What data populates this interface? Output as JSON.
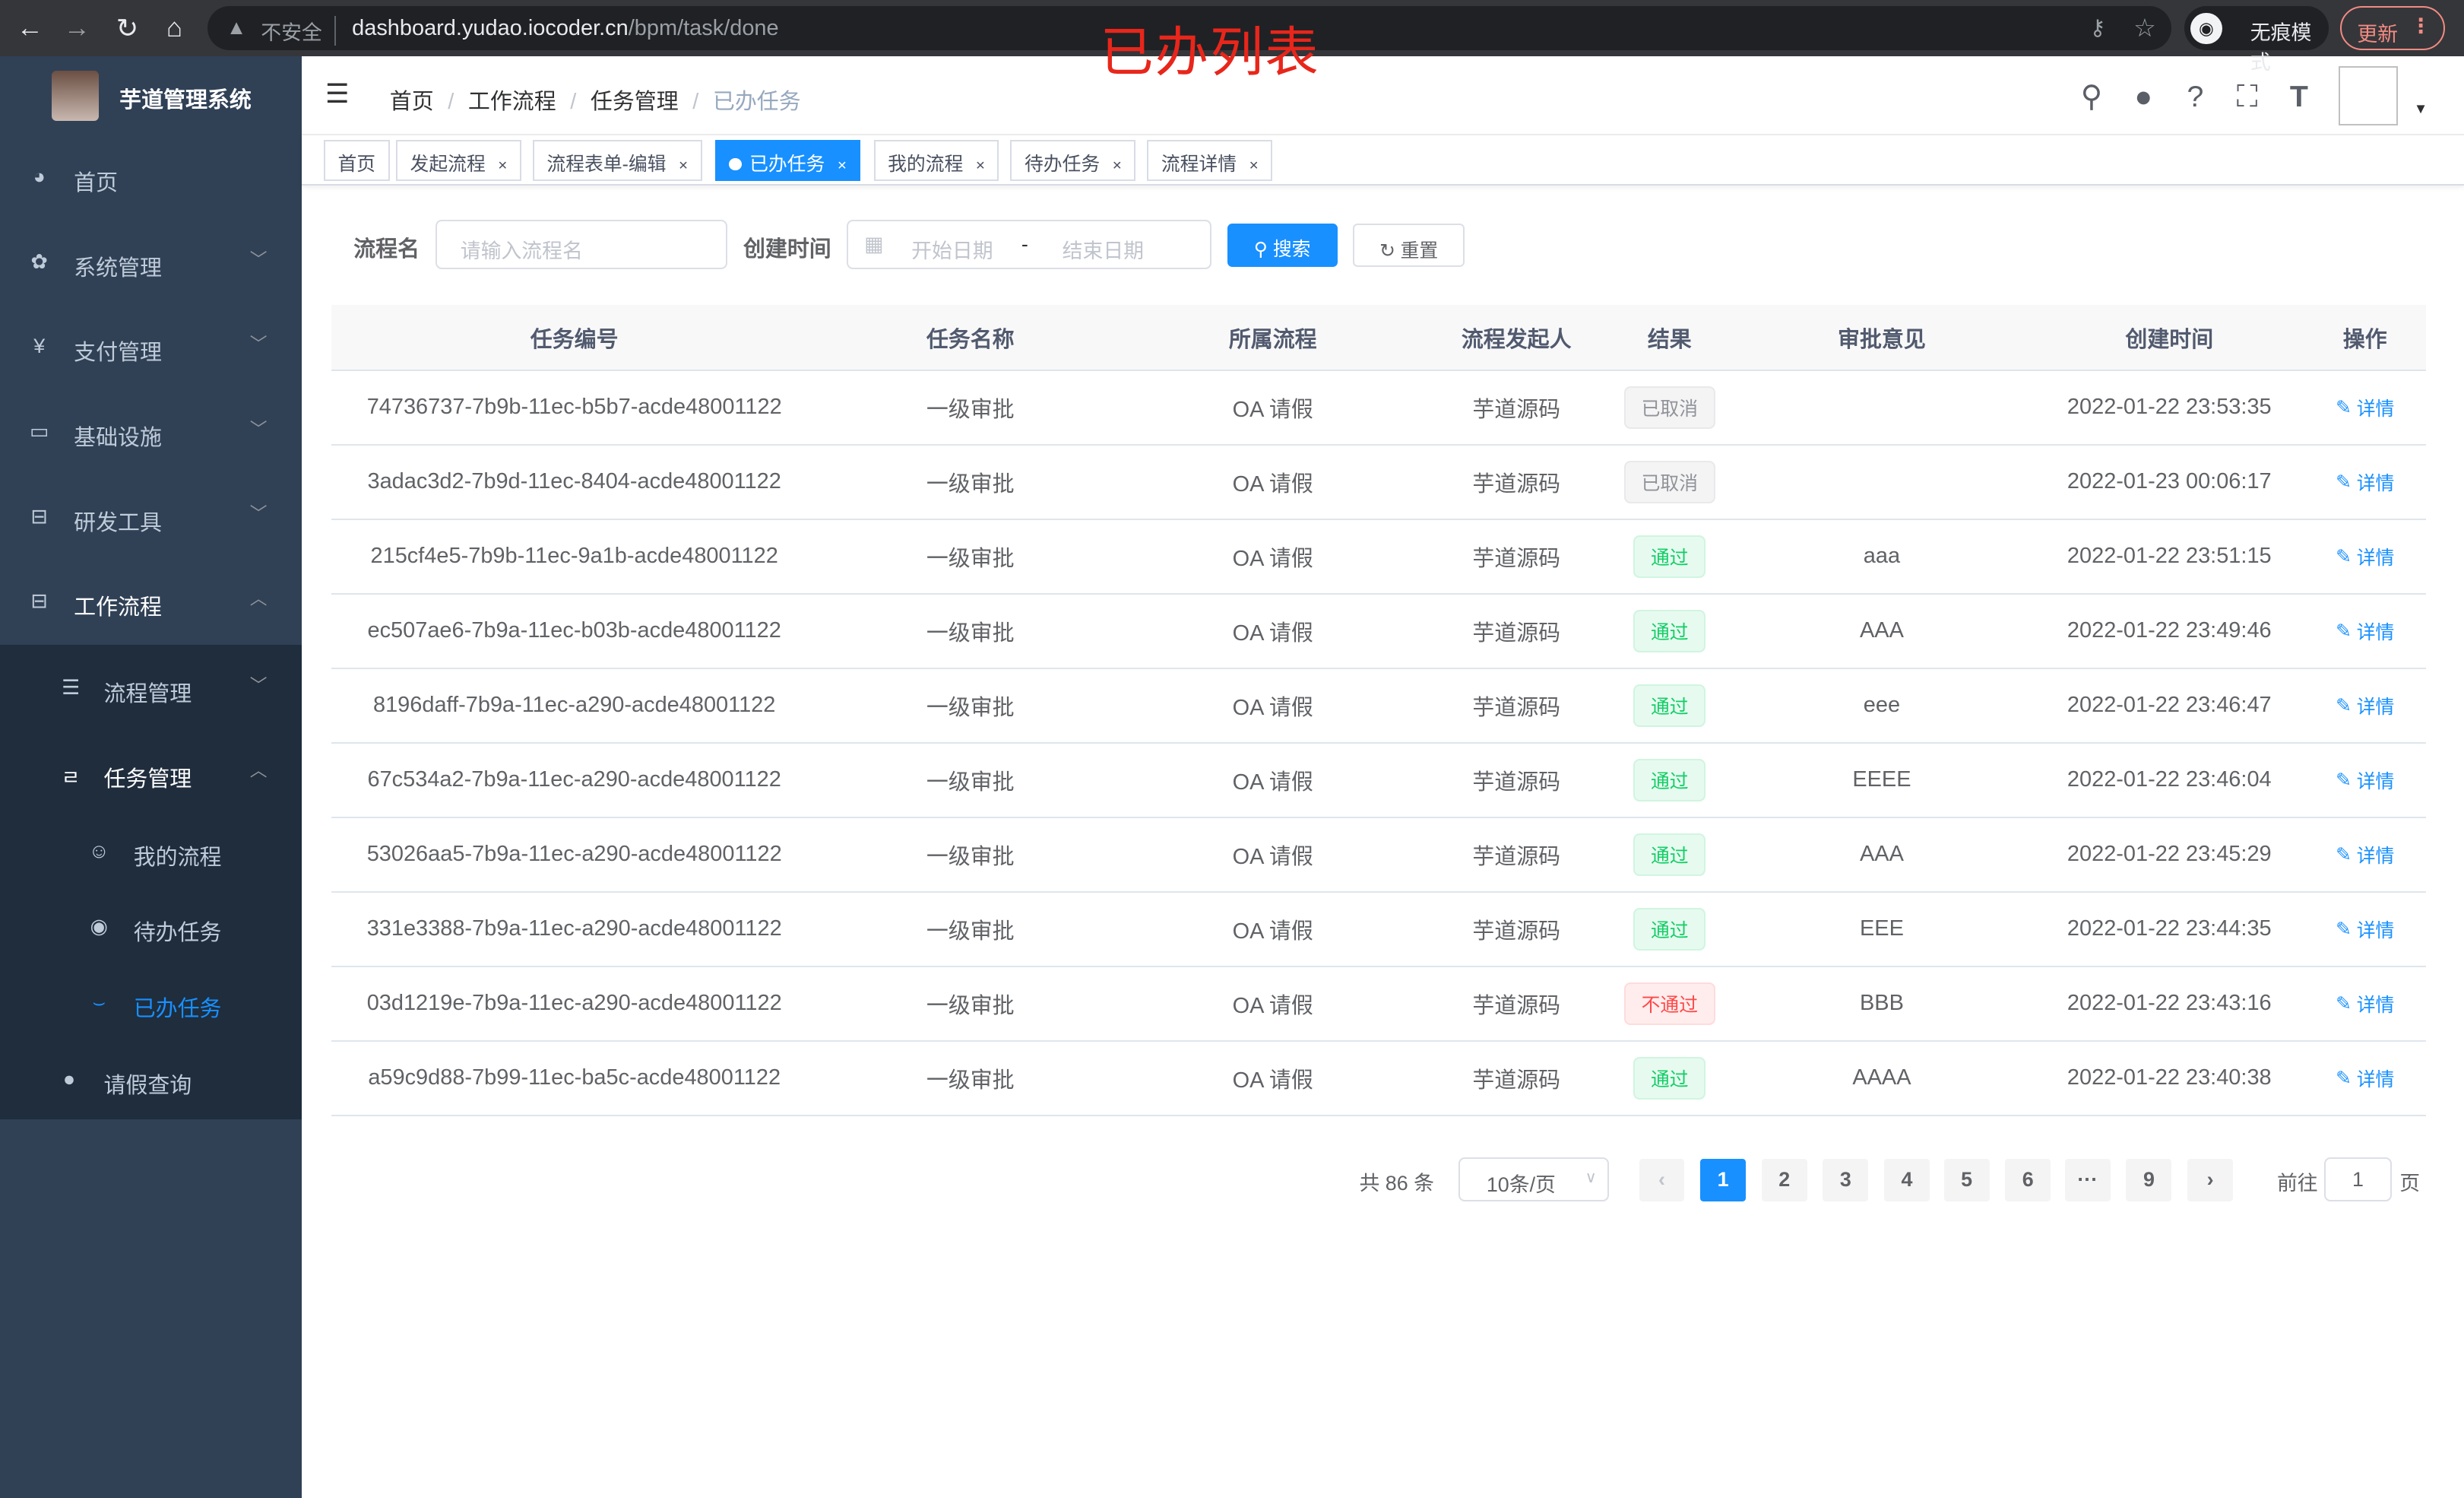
{
  "browser": {
    "insecure": "不安全",
    "url_host": "dashboard.yudao.iocoder.cn",
    "url_path": "/bpm/task/done",
    "incognito": "无痕模式",
    "update": "更新"
  },
  "overlay_title": "已办列表",
  "app": {
    "title": "芋道管理系统"
  },
  "sidebar": {
    "items": [
      {
        "label": "首页",
        "icon": "dashboard-icon"
      },
      {
        "label": "系统管理",
        "icon": "gear-icon"
      },
      {
        "label": "支付管理",
        "icon": "yen-icon"
      },
      {
        "label": "基础设施",
        "icon": "monitor-icon"
      },
      {
        "label": "研发工具",
        "icon": "toolbox-icon"
      },
      {
        "label": "工作流程",
        "icon": "toolbox-icon"
      }
    ],
    "workflow": [
      {
        "label": "流程管理",
        "icon": "list-icon"
      },
      {
        "label": "任务管理",
        "icon": "task-icon"
      },
      {
        "label": "我的流程",
        "icon": "face-icon"
      },
      {
        "label": "待办任务",
        "icon": "eye-icon"
      },
      {
        "label": "已办任务",
        "icon": "eye-closed-icon"
      },
      {
        "label": "请假查询",
        "icon": "user-icon"
      }
    ]
  },
  "breadcrumb": [
    "首页",
    "工作流程",
    "任务管理",
    "已办任务"
  ],
  "tags": [
    {
      "label": "首页"
    },
    {
      "label": "发起流程"
    },
    {
      "label": "流程表单-编辑"
    },
    {
      "label": "已办任务",
      "active": true
    },
    {
      "label": "我的流程"
    },
    {
      "label": "待办任务"
    },
    {
      "label": "流程详情"
    }
  ],
  "search": {
    "name_label": "流程名",
    "name_placeholder": "请输入流程名",
    "time_label": "创建时间",
    "start_placeholder": "开始日期",
    "range_sep": "-",
    "end_placeholder": "结束日期",
    "search_btn": "搜索",
    "reset_btn": "重置"
  },
  "table": {
    "headers": [
      "任务编号",
      "任务名称",
      "所属流程",
      "流程发起人",
      "结果",
      "审批意见",
      "创建时间",
      "操作"
    ],
    "action": "详情",
    "rows": [
      [
        "74736737-7b9b-11ec-b5b7-acde48001122",
        "一级审批",
        "OA 请假",
        "芋道源码",
        "已取消",
        "",
        "2022-01-22 23:53:35"
      ],
      [
        "3adac3d2-7b9d-11ec-8404-acde48001122",
        "一级审批",
        "OA 请假",
        "芋道源码",
        "已取消",
        "",
        "2022-01-23 00:06:17"
      ],
      [
        "215cf4e5-7b9b-11ec-9a1b-acde48001122",
        "一级审批",
        "OA 请假",
        "芋道源码",
        "通过",
        "aaa",
        "2022-01-22 23:51:15"
      ],
      [
        "ec507ae6-7b9a-11ec-b03b-acde48001122",
        "一级审批",
        "OA 请假",
        "芋道源码",
        "通过",
        "AAA",
        "2022-01-22 23:49:46"
      ],
      [
        "8196daff-7b9a-11ec-a290-acde48001122",
        "一级审批",
        "OA 请假",
        "芋道源码",
        "通过",
        "eee",
        "2022-01-22 23:46:47"
      ],
      [
        "67c534a2-7b9a-11ec-a290-acde48001122",
        "一级审批",
        "OA 请假",
        "芋道源码",
        "通过",
        "EEEE",
        "2022-01-22 23:46:04"
      ],
      [
        "53026aa5-7b9a-11ec-a290-acde48001122",
        "一级审批",
        "OA 请假",
        "芋道源码",
        "通过",
        "AAA",
        "2022-01-22 23:45:29"
      ],
      [
        "331e3388-7b9a-11ec-a290-acde48001122",
        "一级审批",
        "OA 请假",
        "芋道源码",
        "通过",
        "EEE",
        "2022-01-22 23:44:35"
      ],
      [
        "03d1219e-7b9a-11ec-a290-acde48001122",
        "一级审批",
        "OA 请假",
        "芋道源码",
        "不通过",
        "BBB",
        "2022-01-22 23:43:16"
      ],
      [
        "a59c9d88-7b99-11ec-ba5c-acde48001122",
        "一级审批",
        "OA 请假",
        "芋道源码",
        "通过",
        "AAAA",
        "2022-01-22 23:40:38"
      ]
    ]
  },
  "result_colors": {
    "已取消": "#909399",
    "通过": "#13ce66",
    "不通过": "#ff4949"
  },
  "pagination": {
    "total": "共 86 条",
    "page_size": "10条/页",
    "pages": [
      "1",
      "2",
      "3",
      "4",
      "5",
      "6",
      "···",
      "9"
    ],
    "current": "1",
    "goto_label": "前往",
    "goto_value": "1",
    "goto_suffix": "页"
  },
  "accent": "#1890ff"
}
